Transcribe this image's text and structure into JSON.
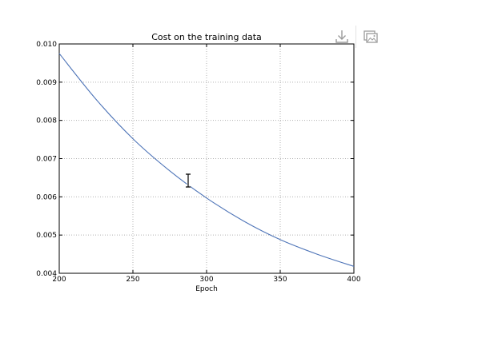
{
  "chart_data": {
    "type": "line",
    "title": "Cost on the training data",
    "xlabel": "Epoch",
    "ylabel": "",
    "xlim": [
      200,
      400
    ],
    "ylim": [
      0.004,
      0.01
    ],
    "x_ticks": [
      200,
      250,
      300,
      350,
      400
    ],
    "x_tick_labels": [
      "200",
      "250",
      "300",
      "350",
      "400"
    ],
    "y_ticks": [
      0.004,
      0.005,
      0.006,
      0.007,
      0.008,
      0.009,
      0.01
    ],
    "y_tick_labels": [
      "0.004",
      "0.005",
      "0.006",
      "0.007",
      "0.008",
      "0.009",
      "0.010"
    ],
    "grid": true,
    "series": [
      {
        "color": "#4f75b8",
        "x": [
          200,
          225,
          250,
          275,
          300,
          325,
          350,
          375,
          400
        ],
        "y": [
          0.00975,
          0.00855,
          0.00752,
          0.00668,
          0.00597,
          0.00537,
          0.00488,
          0.0045,
          0.00418
        ]
      }
    ]
  },
  "toolbar": {
    "download_icon": "download-icon",
    "copy_image_icon": "copy-image-icon"
  },
  "cursor": {
    "icon": "text-cursor-icon"
  }
}
